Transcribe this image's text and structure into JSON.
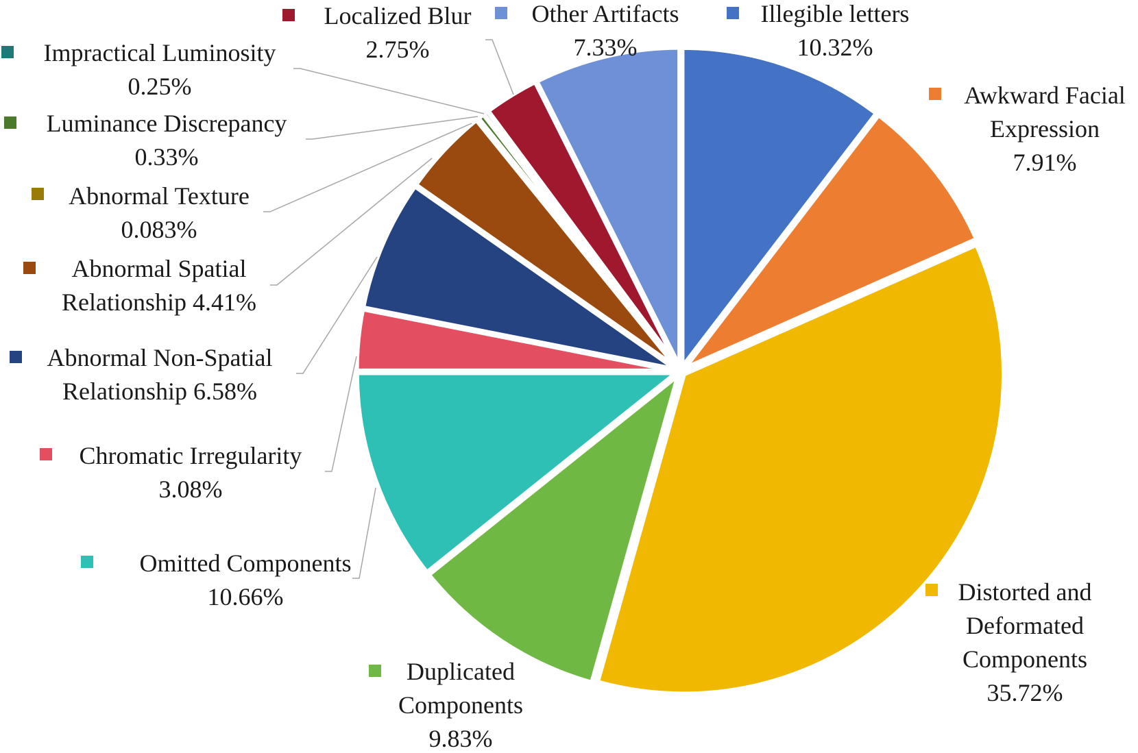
{
  "chart_data": {
    "type": "pie",
    "title": "",
    "slices": [
      {
        "name": "Illegible letters",
        "label": "10.32%",
        "value": 10.32,
        "color": "#4472C4"
      },
      {
        "name": "Awkward Facial Expression",
        "label": "7.91%",
        "value": 7.91,
        "color": "#ED7D31"
      },
      {
        "name": "Distorted and Deformated Components",
        "label": "35.72%",
        "value": 35.72,
        "color": "#F0B800"
      },
      {
        "name": "Duplicated Components",
        "label": "9.83%",
        "value": 9.83,
        "color": "#70B844"
      },
      {
        "name": "Omitted Components",
        "label": "10.66%",
        "value": 10.66,
        "color": "#2EC0B4"
      },
      {
        "name": "Chromatic Irregularity",
        "label": "3.08%",
        "value": 3.08,
        "color": "#E34E60"
      },
      {
        "name": "Abnormal Non-Spatial Relationship",
        "label": "6.58%",
        "value": 6.58,
        "color": "#264381"
      },
      {
        "name": "Abnormal Spatial Relationship",
        "label": "4.41%",
        "value": 4.41,
        "color": "#9A4A0E"
      },
      {
        "name": "Abnormal Texture",
        "label": "0.083%",
        "value": 0.083,
        "color": "#9A7A08"
      },
      {
        "name": "Luminance Discrepancy",
        "label": "0.33%",
        "value": 0.33,
        "color": "#4A7A2A"
      },
      {
        "name": "Impractical Luminosity",
        "label": "0.25%",
        "value": 0.25,
        "color": "#1E7A76"
      },
      {
        "name": "Localized Blur",
        "label": "2.75%",
        "value": 2.75,
        "color": "#A0182E"
      },
      {
        "name": "Other Artifacts",
        "label": "7.33%",
        "value": 7.33,
        "color": "#6E90D6"
      }
    ],
    "legend": "labels beside slices with color markers"
  }
}
